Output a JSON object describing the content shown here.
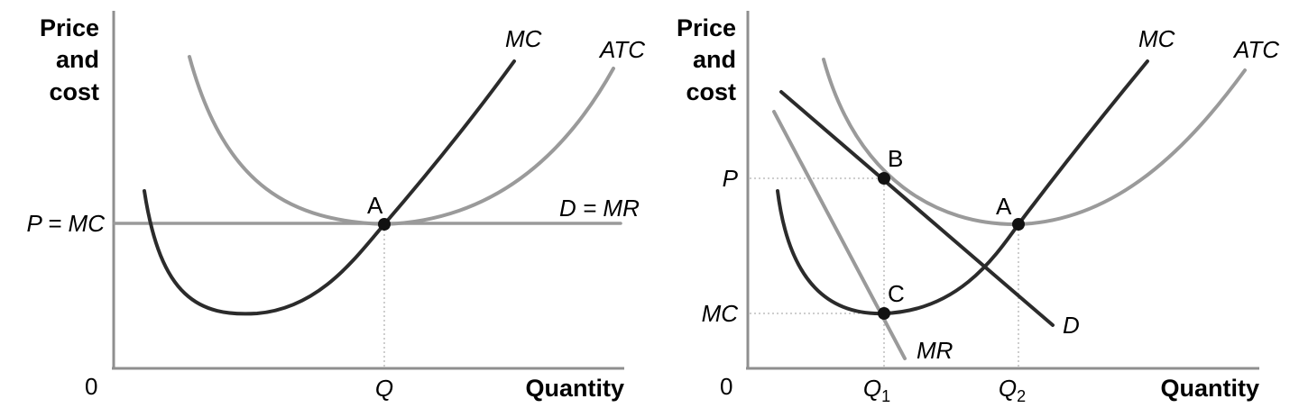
{
  "chart_data": [
    {
      "type": "line",
      "title": "",
      "ylabel": [
        "Price",
        "and",
        "cost"
      ],
      "xlabel": "Quantity",
      "origin_label": "0",
      "x_ticks": [
        "Q"
      ],
      "y_ticks": [
        "P = MC"
      ],
      "series": [
        {
          "name": "MC",
          "color": "#2b2b2b"
        },
        {
          "name": "ATC",
          "color": "#9a9a9a"
        },
        {
          "name": "D = MR",
          "color": "#9a9a9a"
        }
      ],
      "points": [
        {
          "label": "A",
          "x": "Q",
          "y": "P = MC"
        }
      ]
    },
    {
      "type": "line",
      "title": "",
      "ylabel": [
        "Price",
        "and",
        "cost"
      ],
      "xlabel": "Quantity",
      "origin_label": "0",
      "x_ticks": [
        {
          "base": "Q",
          "sub": "1"
        },
        {
          "base": "Q",
          "sub": "2"
        }
      ],
      "y_ticks": [
        "P",
        "MC"
      ],
      "series": [
        {
          "name": "MC",
          "color": "#2b2b2b"
        },
        {
          "name": "ATC",
          "color": "#9a9a9a"
        },
        {
          "name": "D",
          "color": "#2b2b2b"
        },
        {
          "name": "MR",
          "color": "#9a9a9a"
        }
      ],
      "points": [
        {
          "label": "B",
          "x": "Q1",
          "y": "P"
        },
        {
          "label": "A",
          "x": "Q2",
          "y": "ATC min"
        },
        {
          "label": "C",
          "x": "Q1",
          "y": "MC"
        }
      ]
    }
  ]
}
